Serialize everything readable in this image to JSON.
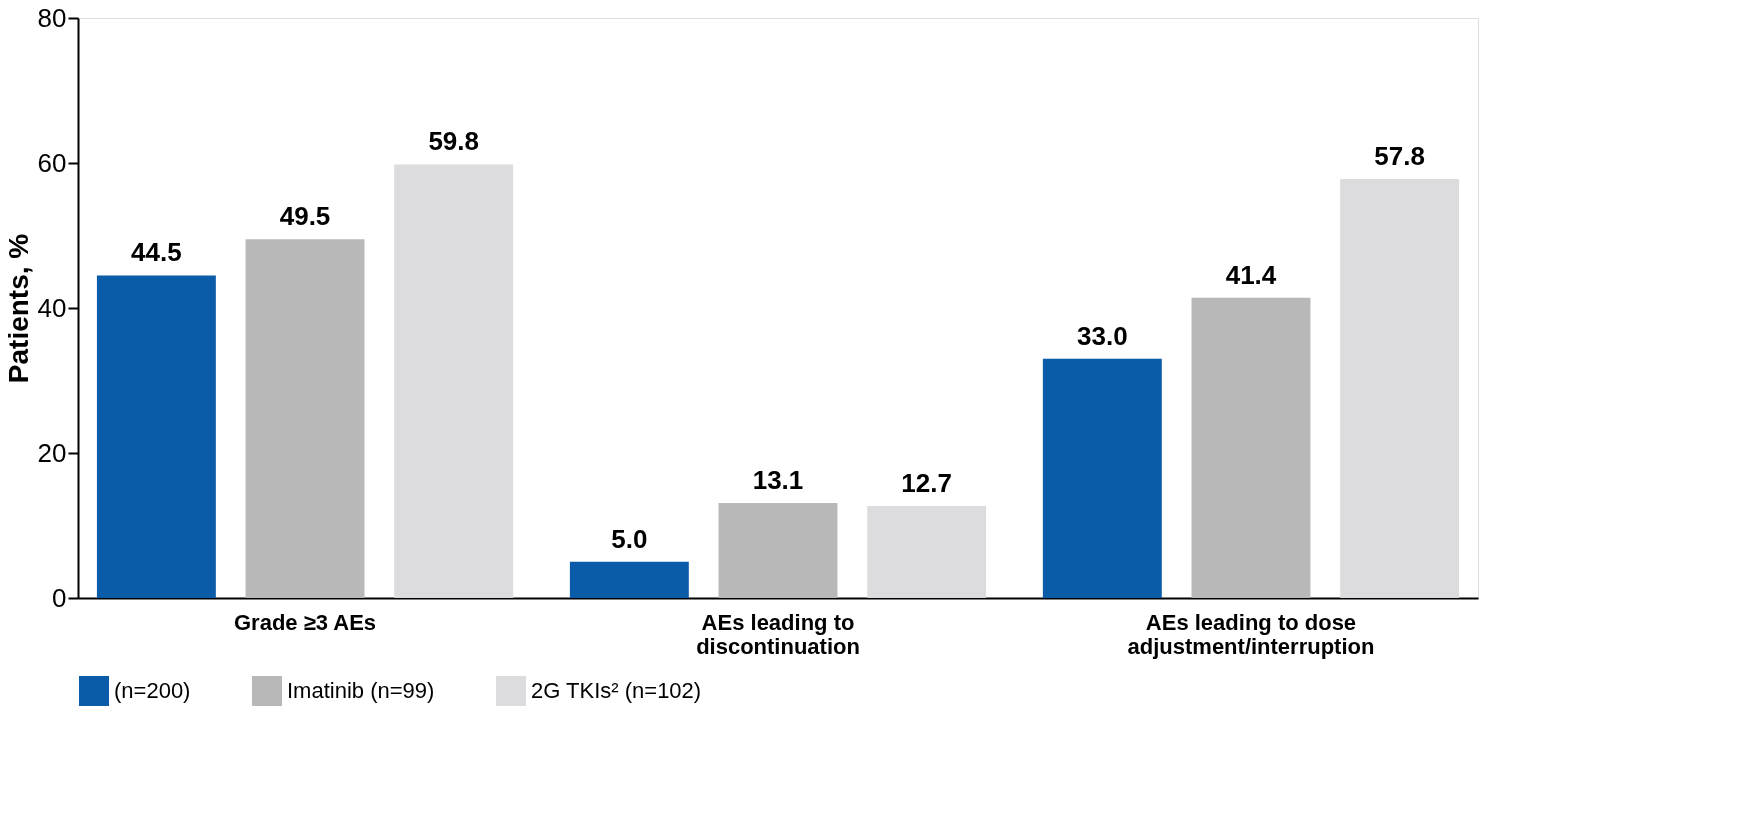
{
  "chart_data": {
    "type": "bar",
    "ylabel": "Patients, %",
    "categories": [
      "Grade ≥3 AEs",
      "AEs leading to discontinuation",
      "AEs leading to dose adjustment/interruption"
    ],
    "series": [
      {
        "name": "(n=200)",
        "color": "#0a5ca8",
        "values": [
          44.5,
          5.0,
          33.0
        ],
        "value_labels": [
          "44.5",
          "5.0",
          "33.0"
        ]
      },
      {
        "name": "Imatinib (n=99)",
        "color": "#b8b8b8",
        "values": [
          49.5,
          13.1,
          41.4
        ],
        "value_labels": [
          "49.5",
          "13.1",
          "41.4"
        ]
      },
      {
        "name": "2G TKIs² (n=102)",
        "color": "#dcdcde",
        "values": [
          59.8,
          12.7,
          57.8
        ],
        "value_labels": [
          "59.8",
          "12.7",
          "57.8"
        ]
      }
    ],
    "ylim": [
      0,
      80
    ],
    "yticks": [
      0,
      20,
      40,
      60,
      80
    ],
    "legend": "bottom",
    "grid": false
  }
}
